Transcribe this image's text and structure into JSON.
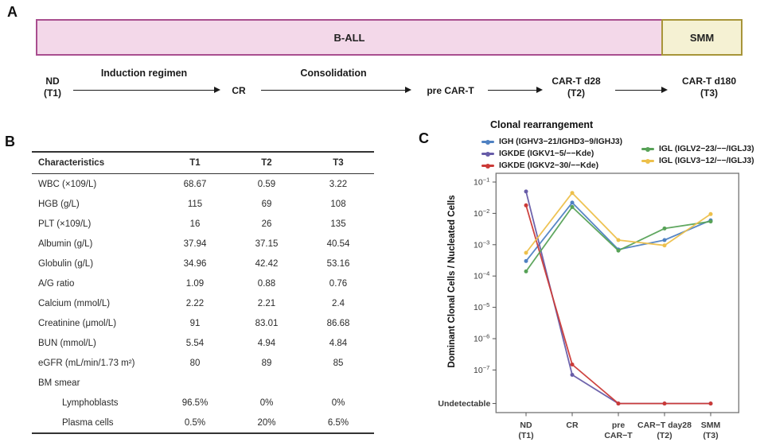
{
  "panels": {
    "a": {
      "label": "A",
      "bar": {
        "ball": {
          "label": "B-ALL",
          "fill": "#F3D8E9",
          "border": "#A94E8F"
        },
        "smm": {
          "label": "SMM",
          "fill": "#F5F1D3",
          "border": "#A79539"
        }
      },
      "timeline": {
        "steps": [
          {
            "line1": "ND",
            "line2": "(T1)"
          },
          {
            "line1": "CR",
            "line2": ""
          },
          {
            "line1": "pre CAR-T",
            "line2": ""
          },
          {
            "line1": "CAR-T d28",
            "line2": "(T2)"
          },
          {
            "line1": "CAR-T d180",
            "line2": "(T3)"
          }
        ],
        "arrows": [
          {
            "label": "Induction regimen"
          },
          {
            "label": "Consolidation"
          },
          {
            "label": ""
          },
          {
            "label": ""
          }
        ]
      }
    },
    "b": {
      "label": "B",
      "table": {
        "headers": [
          "Characteristics",
          "T1",
          "T2",
          "T3"
        ],
        "rows": [
          {
            "name": "WBC (×109/L)",
            "values": [
              "68.67",
              "0.59",
              "3.22"
            ],
            "indent": false
          },
          {
            "name": "HGB (g/L)",
            "values": [
              "115",
              "69",
              "108"
            ],
            "indent": false
          },
          {
            "name": "PLT (×109/L)",
            "values": [
              "16",
              "26",
              "135"
            ],
            "indent": false
          },
          {
            "name": "Albumin (g/L)",
            "values": [
              "37.94",
              "37.15",
              "40.54"
            ],
            "indent": false
          },
          {
            "name": "Globulin (g/L)",
            "values": [
              "34.96",
              "42.42",
              "53.16"
            ],
            "indent": false
          },
          {
            "name": "A/G ratio",
            "values": [
              "1.09",
              "0.88",
              "0.76"
            ],
            "indent": false
          },
          {
            "name": "Calcium (mmol/L)",
            "values": [
              "2.22",
              "2.21",
              "2.4"
            ],
            "indent": false
          },
          {
            "name": "Creatinine (μmol/L)",
            "values": [
              "91",
              "83.01",
              "86.68"
            ],
            "indent": false
          },
          {
            "name": "BUN (mmol/L)",
            "values": [
              "5.54",
              "4.94",
              "4.84"
            ],
            "indent": false
          },
          {
            "name": "eGFR (mL/min/1.73 m²)",
            "values": [
              "80",
              "89",
              "85"
            ],
            "indent": false
          },
          {
            "name": "BM smear",
            "values": [
              "",
              "",
              ""
            ],
            "indent": false
          },
          {
            "name": "Lymphoblasts",
            "values": [
              "96.5%",
              "0%",
              "0%"
            ],
            "indent": true
          },
          {
            "name": "Plasma cells",
            "values": [
              "0.5%",
              "20%",
              "6.5%"
            ],
            "indent": true
          }
        ]
      }
    },
    "c": {
      "label": "C"
    }
  },
  "chart_data": {
    "type": "line",
    "title": "Clonal rearrangement",
    "ylabel": "Dominant Clonal Cells / Nucleated Cells",
    "xlabel": "",
    "y_scale": "log10",
    "y_tick_exponents": [
      -1,
      -2,
      -3,
      -4,
      -5,
      -6,
      -7
    ],
    "undetectable_label": "Undetectable",
    "null_means": "undetectable",
    "legend_position": "top",
    "grid": false,
    "x_categories": [
      [
        "ND",
        "(T1)"
      ],
      [
        "CR",
        ""
      ],
      [
        "pre",
        "CAR−T"
      ],
      [
        "CAR−T day28",
        "(T2)"
      ],
      [
        "SMM",
        "(T3)"
      ]
    ],
    "series": [
      {
        "name": "IGH (IGHV3−21/IGHD3−9/IGHJ3)",
        "color": "#4F81C2",
        "values": [
          0.0003,
          0.022,
          0.0007,
          0.0014,
          0.006
        ]
      },
      {
        "name": "IGKDE (IGKV1−5/−−Kde)",
        "color": "#675CA8",
        "values": [
          0.05,
          7e-08,
          null,
          null,
          null
        ]
      },
      {
        "name": "IGKDE (IGKV2−30/−−Kde)",
        "color": "#CB3A37",
        "values": [
          0.018,
          1.5e-07,
          null,
          null,
          null
        ]
      },
      {
        "name": "IGL (IGLV2−23/−−/IGLJ3)",
        "color": "#57A257",
        "values": [
          0.00014,
          0.016,
          0.00065,
          0.0033,
          0.0055
        ]
      },
      {
        "name": "IGL (IGLV3−12/−−/IGLJ3)",
        "color": "#EDC04B",
        "values": [
          0.00055,
          0.045,
          0.0014,
          0.00095,
          0.0095
        ]
      }
    ]
  }
}
